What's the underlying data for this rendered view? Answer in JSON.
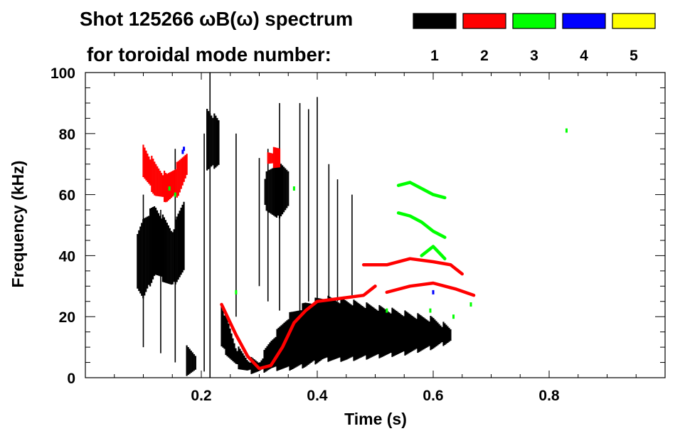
{
  "chart_data": {
    "type": "heatmap",
    "title_line1": "Shot 125266 ωB(ω) spectrum",
    "title_line2": "for toroidal mode number:",
    "xlabel": "Time (s)",
    "ylabel": "Frequency (kHz)",
    "xlim": [
      0.0,
      1.0
    ],
    "ylim": [
      0,
      100
    ],
    "x_ticks": [
      {
        "value": 0.2,
        "label": "0.2"
      },
      {
        "value": 0.4,
        "label": "0.4"
      },
      {
        "value": 0.6,
        "label": "0.6"
      },
      {
        "value": 0.8,
        "label": "0.8"
      }
    ],
    "y_ticks": [
      {
        "value": 0,
        "label": "0"
      },
      {
        "value": 20,
        "label": "20"
      },
      {
        "value": 40,
        "label": "40"
      },
      {
        "value": 60,
        "label": "60"
      },
      {
        "value": 80,
        "label": "80"
      },
      {
        "value": 100,
        "label": "100"
      }
    ],
    "x_minor_step": 0.05,
    "y_minor_step": 5,
    "legend": [
      {
        "mode": "1",
        "color": "#000000"
      },
      {
        "mode": "2",
        "color": "#ff0000"
      },
      {
        "mode": "3",
        "color": "#00ff00"
      },
      {
        "mode": "4",
        "color": "#0000ff"
      },
      {
        "mode": "5",
        "color": "#ffff00"
      }
    ],
    "features": [
      {
        "mode": 1,
        "kind": "band",
        "t": [
          0.09,
          0.1,
          0.12,
          0.15,
          0.17
        ],
        "f_low": [
          30,
          26,
          34,
          30,
          35
        ],
        "f_high": [
          46,
          52,
          56,
          48,
          58
        ]
      },
      {
        "mode": 1,
        "kind": "band",
        "t": [
          0.175,
          0.19
        ],
        "f_low": [
          1,
          2
        ],
        "f_high": [
          10,
          8
        ]
      },
      {
        "mode": 1,
        "kind": "band",
        "t": [
          0.21,
          0.23
        ],
        "f_low": [
          68,
          70
        ],
        "f_high": [
          88,
          84
        ]
      },
      {
        "mode": 1,
        "kind": "band",
        "t": [
          0.235,
          0.26,
          0.28,
          0.3,
          0.32,
          0.35,
          0.38,
          0.41,
          0.45,
          0.5,
          0.55,
          0.6,
          0.63
        ],
        "f_low": [
          10,
          4,
          2,
          2,
          3,
          3,
          4,
          6,
          6,
          7,
          8,
          10,
          12
        ],
        "f_high": [
          24,
          10,
          6,
          5,
          12,
          20,
          24,
          26,
          25,
          23,
          21,
          19,
          16
        ]
      },
      {
        "mode": 1,
        "kind": "band",
        "t": [
          0.31,
          0.33,
          0.35
        ],
        "f_low": [
          56,
          52,
          56
        ],
        "f_high": [
          66,
          70,
          68
        ]
      },
      {
        "mode": 1,
        "kind": "verticals",
        "t": [
          0.1,
          0.13,
          0.155,
          0.205,
          0.215,
          0.26,
          0.3,
          0.315,
          0.335,
          0.37,
          0.385,
          0.4,
          0.42,
          0.435,
          0.46
        ],
        "f_low": [
          10,
          8,
          5,
          2,
          0,
          20,
          30,
          25,
          22,
          22,
          25,
          25,
          26,
          25,
          27
        ],
        "f_high": [
          60,
          55,
          75,
          80,
          100,
          80,
          72,
          75,
          90,
          90,
          88,
          92,
          70,
          65,
          60
        ]
      },
      {
        "mode": 2,
        "kind": "band",
        "t": [
          0.1,
          0.12,
          0.14,
          0.16,
          0.175
        ],
        "f_low": [
          66,
          60,
          58,
          60,
          66
        ],
        "f_high": [
          76,
          70,
          66,
          70,
          74
        ]
      },
      {
        "mode": 2,
        "kind": "band",
        "t": [
          0.315,
          0.335
        ],
        "f_low": [
          70,
          69
        ],
        "f_high": [
          74,
          75
        ]
      },
      {
        "mode": 2,
        "kind": "line",
        "t": [
          0.235,
          0.26,
          0.28,
          0.3,
          0.32,
          0.34,
          0.36,
          0.38,
          0.4,
          0.44,
          0.48,
          0.5
        ],
        "f": [
          24,
          14,
          7,
          3,
          4,
          10,
          18,
          22,
          25,
          26,
          27,
          30
        ]
      },
      {
        "mode": 2,
        "kind": "line",
        "t": [
          0.48,
          0.52,
          0.56,
          0.6,
          0.63,
          0.65
        ],
        "f": [
          37,
          37,
          39,
          38,
          37,
          34
        ]
      },
      {
        "mode": 2,
        "kind": "line",
        "t": [
          0.52,
          0.56,
          0.6,
          0.64,
          0.67
        ],
        "f": [
          28,
          30,
          31,
          29,
          27
        ]
      },
      {
        "mode": 3,
        "kind": "line",
        "t": [
          0.54,
          0.56,
          0.58,
          0.6,
          0.62
        ],
        "f": [
          63,
          64,
          62,
          60,
          59
        ]
      },
      {
        "mode": 3,
        "kind": "line",
        "t": [
          0.54,
          0.56,
          0.58,
          0.6,
          0.62
        ],
        "f": [
          54,
          53,
          51,
          48,
          46
        ]
      },
      {
        "mode": 3,
        "kind": "line",
        "t": [
          0.58,
          0.6,
          0.62
        ],
        "f": [
          40,
          43,
          39
        ]
      },
      {
        "mode": 3,
        "kind": "dots",
        "t": [
          0.145,
          0.155,
          0.26,
          0.36,
          0.52,
          0.595,
          0.635,
          0.665,
          0.83
        ],
        "f": [
          62,
          60,
          28,
          62,
          22,
          22,
          20,
          24,
          81
        ]
      },
      {
        "mode": 4,
        "kind": "dots",
        "t": [
          0.17,
          0.168,
          0.6
        ],
        "f": [
          75,
          74,
          28
        ]
      }
    ]
  }
}
